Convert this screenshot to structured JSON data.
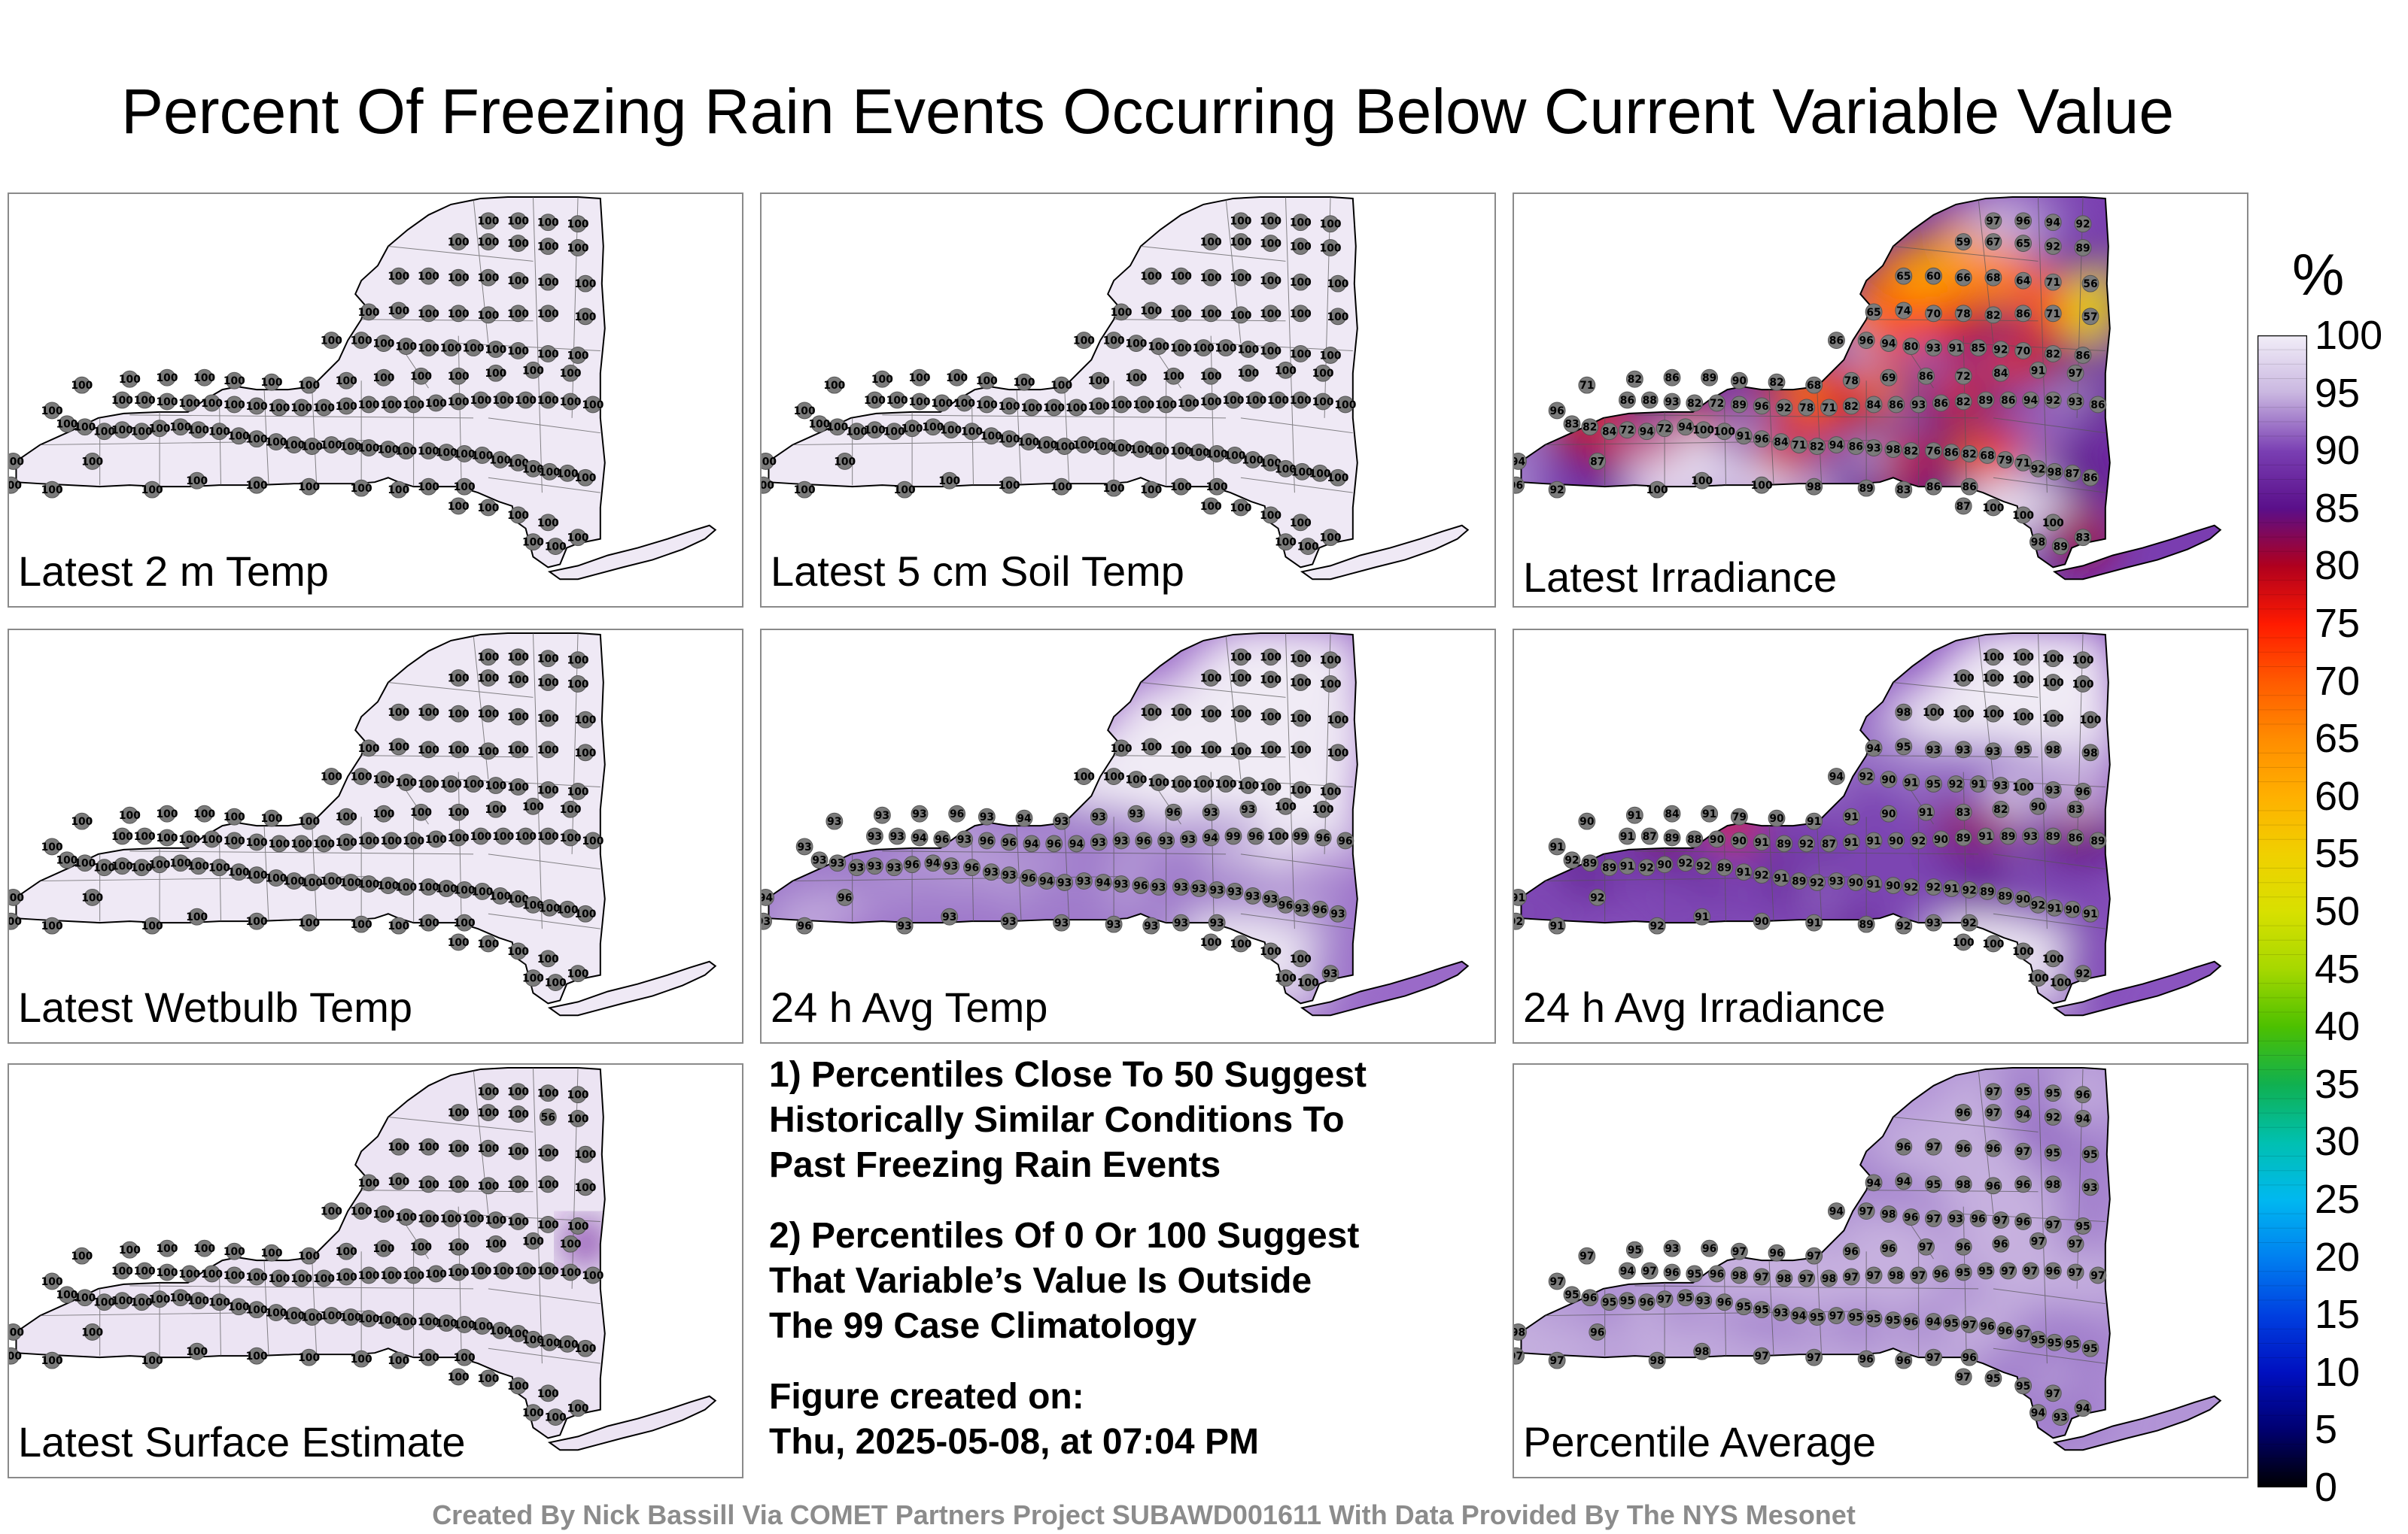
{
  "title": "Percent Of Freezing Rain Events Occurring Below Current Variable Value",
  "panels": [
    {
      "label": "Latest 2 m Temp",
      "fill": "uniform100",
      "labels": [
        "100",
        "100",
        "100",
        "100",
        "100",
        "100",
        "100",
        "100",
        "100",
        "100",
        "100",
        "100",
        "100",
        "100",
        "100",
        "100",
        "100",
        "100",
        "100",
        "100",
        "100",
        "100",
        "100",
        "100",
        "100",
        "100",
        "100",
        "100",
        "100",
        "100",
        "100",
        "100",
        "100",
        "100",
        "100",
        "100",
        "100",
        "100",
        "100",
        "100",
        "100",
        "100",
        "100",
        "100",
        "100",
        "100",
        "100",
        "100",
        "100",
        "100",
        "100",
        "100",
        "100",
        "100",
        "100",
        "100",
        "100",
        "100",
        "100",
        "100",
        "100",
        "100",
        "100",
        "100",
        "100",
        "100",
        "100",
        "100",
        "100",
        "100",
        "100",
        "100",
        "100",
        "100",
        "100",
        "100",
        "100",
        "100",
        "100",
        "100",
        "100",
        "100",
        "100",
        "100",
        "100",
        "100",
        "100",
        "100",
        "100",
        "100",
        "100",
        "100",
        "100",
        "100",
        "100",
        "100",
        "100",
        "100",
        "100",
        "100",
        "100",
        "100",
        "100",
        "100",
        "100",
        "100",
        "100",
        "100",
        "100",
        "100",
        "100",
        "100",
        "100",
        "100",
        "100",
        "100",
        "100",
        "100",
        "100",
        "100",
        "100",
        "100",
        "100"
      ]
    },
    {
      "label": "Latest 5 cm Soil Temp",
      "fill": "uniform100",
      "labels": [
        "100",
        "100",
        "100",
        "100",
        "100",
        "100",
        "100",
        "100",
        "100",
        "100",
        "100",
        "100",
        "100",
        "100",
        "100",
        "100",
        "100",
        "100",
        "100",
        "100",
        "100",
        "100",
        "100",
        "100",
        "100",
        "100",
        "100",
        "100",
        "100",
        "100",
        "100",
        "100",
        "100",
        "100",
        "100",
        "100",
        "100",
        "100",
        "100",
        "100",
        "100",
        "100",
        "100",
        "100",
        "100",
        "100",
        "100",
        "100",
        "100",
        "100",
        "100",
        "100",
        "100",
        "100",
        "100",
        "100",
        "100",
        "100",
        "100",
        "100",
        "100",
        "100",
        "100",
        "100",
        "100",
        "100",
        "100",
        "100",
        "100",
        "100",
        "100",
        "100",
        "100",
        "100",
        "100",
        "100",
        "100",
        "100",
        "100",
        "100",
        "100",
        "100",
        "100",
        "100",
        "100",
        "100",
        "100",
        "100",
        "100",
        "100",
        "100",
        "100",
        "100",
        "100",
        "100",
        "100",
        "100",
        "100",
        "100",
        "100",
        "100",
        "100",
        "100",
        "100",
        "100",
        "100",
        "100",
        "100",
        "100",
        "100",
        "100",
        "100",
        "100",
        "100",
        "100",
        "100",
        "100",
        "100",
        "100",
        "100",
        "100",
        "100",
        "100"
      ]
    },
    {
      "label": "Latest Irradiance",
      "fill": "irradiance",
      "labels": [
        "96",
        "94",
        "92",
        "87",
        "100",
        "100",
        "100",
        "98",
        "89",
        "83",
        "86",
        "86",
        "96",
        "83",
        "82",
        "84",
        "72",
        "94",
        "72",
        "94",
        "100",
        "100",
        "91",
        "96",
        "84",
        "71",
        "82",
        "94",
        "86",
        "93",
        "98",
        "82",
        "76",
        "86",
        "82",
        "68",
        "79",
        "71",
        "92",
        "98",
        "87",
        "86",
        "86",
        "88",
        "93",
        "82",
        "72",
        "89",
        "96",
        "92",
        "78",
        "71",
        "82",
        "84",
        "86",
        "93",
        "86",
        "82",
        "89",
        "86",
        "94",
        "92",
        "93",
        "86",
        "71",
        "82",
        "86",
        "89",
        "90",
        "82",
        "68",
        "78",
        "69",
        "86",
        "72",
        "84",
        "91",
        "97",
        "86",
        "96",
        "94",
        "80",
        "93",
        "91",
        "85",
        "92",
        "70",
        "82",
        "86",
        "65",
        "74",
        "70",
        "78",
        "82",
        "86",
        "71",
        "57",
        "65",
        "60",
        "66",
        "68",
        "64",
        "71",
        "56",
        "59",
        "67",
        "65",
        "92",
        "89",
        "97"
      ]
    },
    {
      "label": "Latest Wetbulb Temp",
      "fill": "uniform100",
      "labels": [
        "100",
        "100",
        "100",
        "100",
        "100",
        "100",
        "100",
        "100",
        "100",
        "100",
        "100",
        "100",
        "100",
        "100",
        "100",
        "100",
        "100",
        "100",
        "100",
        "100",
        "100",
        "100",
        "100",
        "100",
        "100",
        "100",
        "100",
        "100",
        "100",
        "100",
        "100",
        "100",
        "100",
        "100",
        "100",
        "100",
        "100",
        "100",
        "100",
        "100",
        "100",
        "100",
        "100",
        "100",
        "100",
        "100",
        "100",
        "100",
        "100",
        "100",
        "100",
        "100",
        "100",
        "100",
        "100",
        "100",
        "100",
        "100",
        "100",
        "100",
        "100",
        "100",
        "100",
        "100",
        "100",
        "100",
        "100",
        "100",
        "100",
        "100",
        "100",
        "100",
        "100",
        "100",
        "100",
        "100",
        "100",
        "100",
        "100",
        "100",
        "100",
        "100",
        "100",
        "100",
        "100",
        "100",
        "100",
        "100",
        "100",
        "100",
        "100",
        "100",
        "100",
        "100",
        "100",
        "100",
        "100",
        "100",
        "100",
        "100",
        "100",
        "100",
        "100",
        "100",
        "100",
        "100",
        "100",
        "100",
        "100",
        "100",
        "100",
        "100",
        "100",
        "100",
        "100",
        "100",
        "100",
        "100",
        "100",
        "100",
        "100",
        "100",
        "100"
      ]
    },
    {
      "label": "24 h Avg Temp",
      "fill": "avgtemp",
      "labels": [
        "93",
        "94",
        "96",
        "96",
        "93",
        "93",
        "93",
        "93",
        "93",
        "93",
        "93",
        "93",
        "93",
        "93",
        "93",
        "93",
        "93",
        "93",
        "96",
        "94",
        "93",
        "96",
        "93",
        "93",
        "96",
        "94",
        "93",
        "93",
        "94",
        "93",
        "96",
        "93",
        "93",
        "93",
        "93",
        "93",
        "93",
        "93",
        "96",
        "93",
        "96",
        "93",
        "93",
        "93",
        "94",
        "96",
        "93",
        "96",
        "96",
        "94",
        "96",
        "94",
        "93",
        "93",
        "96",
        "93",
        "93",
        "94",
        "99",
        "96",
        "100",
        "99",
        "96",
        "96",
        "93",
        "93",
        "93",
        "96",
        "93",
        "94",
        "93",
        "93",
        "93",
        "96",
        "93",
        "93",
        "100",
        "100",
        "100",
        "100",
        "100",
        "100",
        "100",
        "100",
        "100",
        "100",
        "100",
        "100",
        "100",
        "100",
        "100",
        "100",
        "100",
        "100",
        "100",
        "100",
        "100",
        "100",
        "100",
        "100",
        "100",
        "100",
        "100",
        "100",
        "100",
        "100",
        "100",
        "100",
        "100",
        "100",
        "100",
        "100",
        "100",
        "100",
        "100",
        "100",
        "100",
        "100",
        "100"
      ]
    },
    {
      "label": "24 h Avg Irradiance",
      "fill": "avgirr",
      "labels": [
        "92",
        "91",
        "91",
        "92",
        "92",
        "91",
        "90",
        "91",
        "89",
        "92",
        "93",
        "92",
        "91",
        "92",
        "89",
        "89",
        "91",
        "92",
        "90",
        "92",
        "92",
        "89",
        "91",
        "92",
        "91",
        "89",
        "92",
        "93",
        "90",
        "91",
        "90",
        "92",
        "92",
        "91",
        "92",
        "89",
        "89",
        "90",
        "92",
        "91",
        "90",
        "91",
        "91",
        "87",
        "89",
        "88",
        "90",
        "90",
        "91",
        "89",
        "92",
        "87",
        "91",
        "91",
        "90",
        "92",
        "90",
        "89",
        "91",
        "89",
        "93",
        "89",
        "86",
        "89",
        "90",
        "91",
        "84",
        "91",
        "79",
        "90",
        "91",
        "91",
        "90",
        "91",
        "83",
        "82",
        "90",
        "83",
        "94",
        "92",
        "90",
        "91",
        "95",
        "92",
        "91",
        "93",
        "100",
        "93",
        "96",
        "94",
        "95",
        "93",
        "93",
        "93",
        "95",
        "98",
        "98",
        "98",
        "100",
        "100",
        "100",
        "100",
        "100",
        "100",
        "100",
        "100",
        "100",
        "100",
        "100",
        "100",
        "100",
        "100",
        "100",
        "100",
        "100",
        "100",
        "100",
        "100",
        "100"
      ]
    },
    {
      "label": "Latest Surface Estimate",
      "fill": "surface",
      "labels": [
        "100",
        "100",
        "100",
        "100",
        "100",
        "100",
        "100",
        "100",
        "100",
        "100",
        "100",
        "100",
        "100",
        "100",
        "100",
        "100",
        "100",
        "100",
        "100",
        "100",
        "100",
        "100",
        "100",
        "100",
        "100",
        "100",
        "100",
        "100",
        "100",
        "100",
        "100",
        "100",
        "100",
        "100",
        "100",
        "100",
        "100",
        "100",
        "100",
        "100",
        "100",
        "100",
        "100",
        "100",
        "100",
        "100",
        "100",
        "100",
        "100",
        "100",
        "100",
        "100",
        "100",
        "100",
        "100",
        "100",
        "100",
        "100",
        "100",
        "100",
        "100",
        "100",
        "100",
        "100",
        "100",
        "100",
        "100",
        "100",
        "100",
        "100",
        "100",
        "100",
        "100",
        "100",
        "100",
        "100",
        "100",
        "100",
        "100",
        "100",
        "100",
        "100",
        "100",
        "100",
        "100",
        "100",
        "100",
        "100",
        "100",
        "100",
        "100",
        "100",
        "100",
        "100",
        "100",
        "100",
        "100",
        "100",
        "100",
        "100",
        "100",
        "100",
        "100",
        "100",
        "100",
        "100",
        "100",
        "56",
        "100",
        "100",
        "100",
        "100",
        "100",
        "100",
        "100",
        "100",
        "100",
        "100",
        "100"
      ]
    },
    {
      "label": "Percentile Average",
      "fill": "average",
      "labels": [
        "97",
        "98",
        "97",
        "96",
        "98",
        "98",
        "97",
        "97",
        "96",
        "96",
        "97",
        "96",
        "97",
        "95",
        "96",
        "95",
        "95",
        "96",
        "97",
        "95",
        "93",
        "96",
        "95",
        "95",
        "93",
        "94",
        "95",
        "97",
        "95",
        "95",
        "95",
        "96",
        "94",
        "95",
        "97",
        "96",
        "96",
        "97",
        "95",
        "95",
        "95",
        "95",
        "94",
        "97",
        "96",
        "95",
        "96",
        "98",
        "97",
        "98",
        "97",
        "98",
        "97",
        "97",
        "98",
        "97",
        "96",
        "95",
        "95",
        "97",
        "97",
        "96",
        "97",
        "97",
        "97",
        "95",
        "93",
        "96",
        "97",
        "96",
        "97",
        "96",
        "96",
        "97",
        "96",
        "96",
        "97",
        "97",
        "94",
        "97",
        "98",
        "96",
        "97",
        "93",
        "96",
        "97",
        "96",
        "97",
        "95",
        "94",
        "94",
        "95",
        "98",
        "96",
        "96",
        "98",
        "93",
        "96",
        "97",
        "96",
        "96",
        "97",
        "95",
        "95",
        "96",
        "97",
        "94",
        "92",
        "94",
        "97",
        "95",
        "95",
        "96",
        "97",
        "95",
        "95",
        "97",
        "94",
        "93",
        "94",
        "98",
        "97",
        "98"
      ]
    }
  ],
  "notes": [
    "1) Percentiles Close To 50 Suggest\nHistorically Similar Conditions To\nPast Freezing Rain Events",
    "2) Percentiles Of 0 Or 100 Suggest\nThat Variable’s Value Is Outside\nThe 99 Case Climatology",
    "Figure created on:\nThu, 2025-05-08, at 07:04 PM"
  ],
  "colorbar": {
    "unit": "%",
    "ticks": [
      "100",
      "95",
      "90",
      "85",
      "80",
      "75",
      "70",
      "65",
      "60",
      "55",
      "50",
      "45",
      "40",
      "35",
      "30",
      "25",
      "20",
      "15",
      "10",
      "5",
      "0"
    ],
    "colors": {
      "100": "#f2eef8",
      "95": "#c9b6e0",
      "90": "#7a3fb3",
      "85": "#5a0f8a",
      "80": "#b0001e",
      "75": "#ff1a00",
      "70": "#ff5a00",
      "65": "#ff8c00",
      "60": "#ffb000",
      "55": "#f0d000",
      "50": "#d8e000",
      "45": "#a6d800",
      "40": "#4cc000",
      "35": "#10b050",
      "30": "#00c0b0",
      "25": "#00b8f0",
      "20": "#0080f0",
      "15": "#0040e0",
      "10": "#0010c0",
      "5": "#000070",
      "0": "#000000"
    }
  },
  "footer": "Created By Nick Bassill Via COMET Partners Project SUBAWD001611 With Data Provided By The NYS Mesonet"
}
